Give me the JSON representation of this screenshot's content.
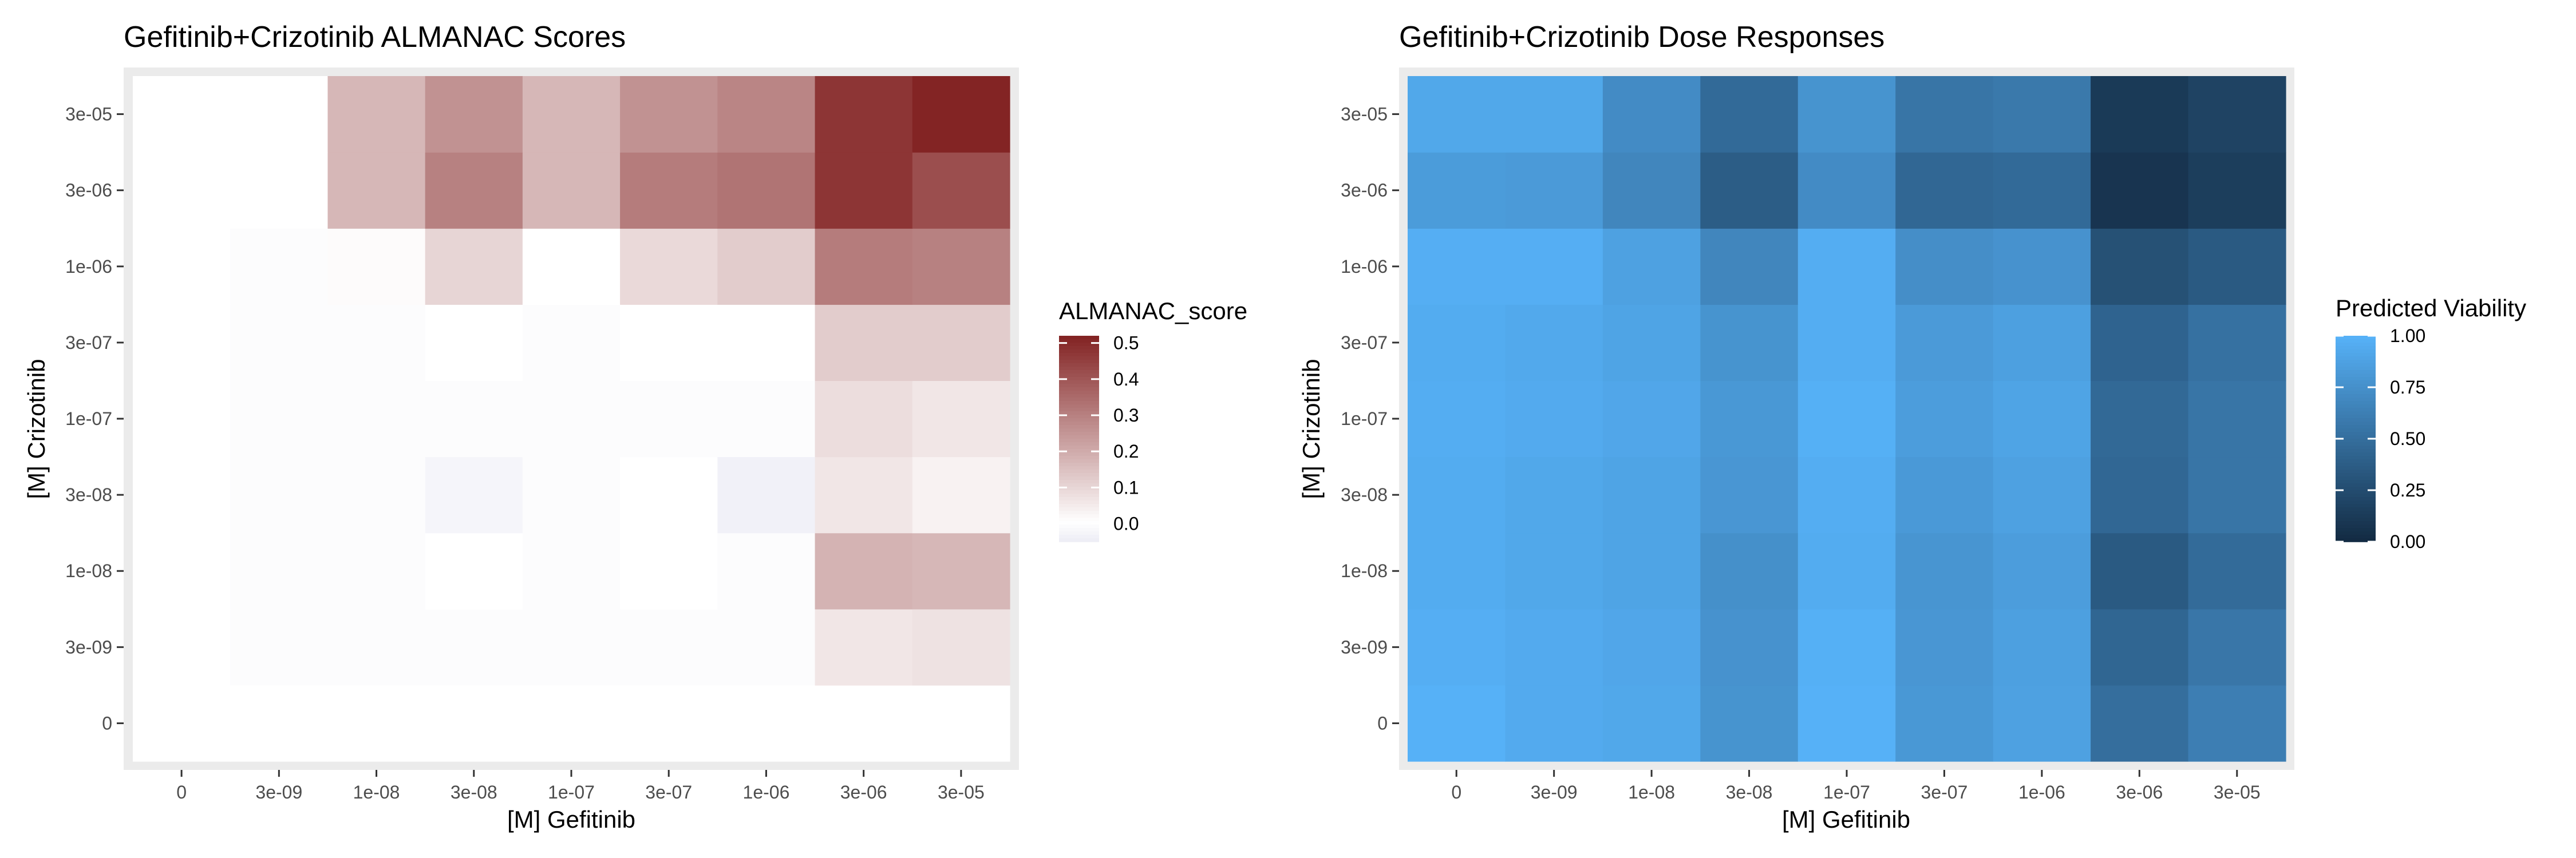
{
  "chart_data": [
    {
      "type": "heatmap",
      "title": "Gefitinib+Crizotinib ALMANAC Scores",
      "xlabel": "[M] Gefitinib",
      "ylabel": "[M] Crizotinib",
      "x_categories": [
        "0",
        "3e-09",
        "1e-08",
        "3e-08",
        "1e-07",
        "3e-07",
        "1e-06",
        "3e-06",
        "3e-05"
      ],
      "y_categories": [
        "0",
        "3e-09",
        "1e-08",
        "3e-08",
        "1e-07",
        "3e-07",
        "1e-06",
        "3e-06",
        "3e-05"
      ],
      "values": [
        [
          0.0,
          0.0,
          0.0,
          0.0,
          0.0,
          0.0,
          0.0,
          0.0,
          0.0
        ],
        [
          0.0,
          -0.01,
          -0.01,
          -0.01,
          -0.01,
          -0.01,
          -0.01,
          0.06,
          0.07
        ],
        [
          0.0,
          -0.01,
          -0.01,
          0.0,
          -0.01,
          0.0,
          -0.01,
          0.18,
          0.17
        ],
        [
          0.0,
          -0.01,
          -0.01,
          -0.03,
          -0.01,
          0.0,
          -0.04,
          0.06,
          0.03
        ],
        [
          0.0,
          -0.01,
          -0.01,
          -0.01,
          -0.01,
          -0.01,
          -0.01,
          0.08,
          0.06
        ],
        [
          0.0,
          -0.01,
          -0.01,
          0.0,
          -0.01,
          0.0,
          0.0,
          0.12,
          0.12
        ],
        [
          0.0,
          -0.01,
          0.01,
          0.1,
          0.0,
          0.09,
          0.12,
          0.31,
          0.3
        ],
        [
          0.0,
          0.0,
          0.17,
          0.3,
          0.17,
          0.31,
          0.33,
          0.48,
          0.42
        ],
        [
          0.0,
          0.0,
          0.17,
          0.26,
          0.17,
          0.26,
          0.29,
          0.48,
          0.52
        ]
      ],
      "legend": {
        "title": "ALMANAC_score",
        "ticks": [
          "0.0",
          "0.1",
          "0.2",
          "0.3",
          "0.4",
          "0.5"
        ],
        "range": [
          -0.05,
          0.52
        ],
        "low_color": "#EEEEF6",
        "mid_color": "#FFFFFF",
        "high_color": "#832424"
      },
      "panel_bg": "#EBEBEB"
    },
    {
      "type": "heatmap",
      "title": "Gefitinib+Crizotinib Dose Responses",
      "xlabel": "[M] Gefitinib",
      "ylabel": "[M] Crizotinib",
      "x_categories": [
        "0",
        "3e-09",
        "1e-08",
        "3e-08",
        "1e-07",
        "3e-07",
        "1e-06",
        "3e-06",
        "3e-05"
      ],
      "y_categories": [
        "0",
        "3e-09",
        "1e-08",
        "3e-08",
        "1e-07",
        "3e-07",
        "1e-06",
        "3e-06",
        "3e-05"
      ],
      "values": [
        [
          1.0,
          0.95,
          0.93,
          0.78,
          1.0,
          0.81,
          0.88,
          0.5,
          0.62
        ],
        [
          0.98,
          0.95,
          0.92,
          0.77,
          0.99,
          0.8,
          0.87,
          0.44,
          0.56
        ],
        [
          0.96,
          0.93,
          0.9,
          0.75,
          0.96,
          0.79,
          0.85,
          0.35,
          0.48
        ],
        [
          0.96,
          0.93,
          0.9,
          0.8,
          0.97,
          0.82,
          0.88,
          0.45,
          0.55
        ],
        [
          0.97,
          0.95,
          0.92,
          0.81,
          0.99,
          0.85,
          0.9,
          0.46,
          0.55
        ],
        [
          0.96,
          0.94,
          0.9,
          0.78,
          0.97,
          0.83,
          0.87,
          0.42,
          0.52
        ],
        [
          0.98,
          0.98,
          0.88,
          0.68,
          0.97,
          0.74,
          0.77,
          0.28,
          0.35
        ],
        [
          0.84,
          0.83,
          0.68,
          0.37,
          0.72,
          0.45,
          0.47,
          0.07,
          0.14
        ],
        [
          0.93,
          0.93,
          0.72,
          0.47,
          0.78,
          0.55,
          0.58,
          0.11,
          0.18
        ]
      ],
      "legend": {
        "title": "Predicted Viability",
        "ticks": [
          "0.00",
          "0.25",
          "0.50",
          "0.75",
          "1.00"
        ],
        "range": [
          0,
          1
        ],
        "low_color": "#132B43",
        "high_color": "#56B1F7"
      },
      "panel_bg": "#EBEBEB"
    }
  ]
}
